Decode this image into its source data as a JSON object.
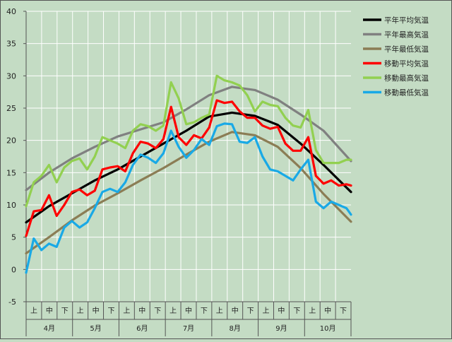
{
  "chart_data": {
    "type": "line",
    "ylim": [
      -5,
      40
    ],
    "yticks": [
      -5,
      0,
      5,
      10,
      15,
      20,
      25,
      30,
      35,
      40
    ],
    "x_months": [
      "4月",
      "5月",
      "6月",
      "7月",
      "8月",
      "9月",
      "10月"
    ],
    "x_decades": [
      "上",
      "中",
      "下"
    ],
    "x_range": [
      0,
      213
    ],
    "grid": true,
    "legend_position": "right",
    "series": [
      {
        "name": "平年平均気温",
        "color": "#000000",
        "x": [
          0,
          15,
          30,
          45,
          60,
          75,
          90,
          105,
          120,
          135,
          150,
          165,
          180,
          195,
          213
        ],
        "y": [
          7.3,
          9.8,
          11.8,
          13.8,
          15.5,
          17.5,
          19.5,
          21.5,
          23.7,
          24.3,
          23.8,
          22.4,
          19.5,
          16.2,
          12.0
        ]
      },
      {
        "name": "平年最高気温",
        "color": "#808080",
        "x": [
          0,
          15,
          30,
          45,
          60,
          75,
          90,
          105,
          120,
          135,
          150,
          165,
          180,
          195,
          213
        ],
        "y": [
          12.3,
          15.0,
          17.2,
          19.0,
          20.6,
          21.7,
          22.8,
          24.8,
          27.0,
          28.3,
          27.8,
          26.3,
          24.0,
          21.5,
          16.8
        ]
      },
      {
        "name": "平年最低気温",
        "color": "#8b7d55",
        "x": [
          0,
          15,
          30,
          45,
          60,
          75,
          90,
          105,
          120,
          135,
          150,
          165,
          180,
          195,
          213
        ],
        "y": [
          2.5,
          5.0,
          7.6,
          9.9,
          11.8,
          13.8,
          15.7,
          17.8,
          19.8,
          21.3,
          20.8,
          19.0,
          15.7,
          11.7,
          7.4
        ]
      },
      {
        "name": "移動平均気温",
        "color": "#ff0000",
        "x": [
          0,
          5,
          10,
          15,
          20,
          25,
          30,
          35,
          40,
          45,
          50,
          55,
          60,
          65,
          70,
          75,
          80,
          85,
          90,
          95,
          100,
          105,
          110,
          115,
          120,
          125,
          130,
          135,
          140,
          145,
          150,
          155,
          160,
          165,
          170,
          175,
          180,
          185,
          190,
          195,
          200,
          205,
          210,
          213
        ],
        "y": [
          5.2,
          9.0,
          9.2,
          11.5,
          8.3,
          10.0,
          12.0,
          12.4,
          11.5,
          12.2,
          15.5,
          15.8,
          16.0,
          15.2,
          18.0,
          19.8,
          19.5,
          18.8,
          20.2,
          25.2,
          20.5,
          19.3,
          20.8,
          20.3,
          22.0,
          26.2,
          25.8,
          26.0,
          24.5,
          23.5,
          23.5,
          22.3,
          21.8,
          22.1,
          19.5,
          18.4,
          18.4,
          20.5,
          14.5,
          13.3,
          13.8,
          13.0,
          13.2,
          13.0
        ]
      },
      {
        "name": "移動最高気温",
        "color": "#92d050",
        "x": [
          0,
          5,
          10,
          15,
          20,
          25,
          30,
          35,
          40,
          45,
          50,
          55,
          60,
          65,
          70,
          75,
          80,
          85,
          90,
          95,
          100,
          105,
          110,
          115,
          120,
          125,
          130,
          135,
          140,
          145,
          150,
          155,
          160,
          165,
          170,
          175,
          180,
          185,
          190,
          195,
          200,
          205,
          210,
          213
        ],
        "y": [
          9.8,
          13.5,
          14.5,
          16.2,
          13.5,
          15.8,
          16.8,
          17.2,
          15.5,
          17.5,
          20.5,
          20.0,
          19.5,
          18.8,
          21.5,
          22.5,
          22.2,
          21.5,
          22.3,
          29.0,
          26.5,
          22.5,
          22.8,
          23.5,
          24.0,
          30.0,
          29.3,
          29.0,
          28.5,
          27.0,
          24.5,
          26.0,
          25.5,
          25.3,
          23.5,
          22.3,
          22.0,
          24.7,
          18.5,
          16.5,
          16.5,
          16.5,
          17.0,
          17.0
        ]
      },
      {
        "name": "移動最低気温",
        "color": "#19a9e6",
        "x": [
          0,
          5,
          10,
          15,
          20,
          25,
          30,
          35,
          40,
          45,
          50,
          55,
          60,
          65,
          70,
          75,
          80,
          85,
          90,
          95,
          100,
          105,
          110,
          115,
          120,
          125,
          130,
          135,
          140,
          145,
          150,
          155,
          160,
          165,
          170,
          175,
          180,
          185,
          190,
          195,
          200,
          205,
          210,
          213
        ],
        "y": [
          -0.5,
          4.8,
          3.0,
          4.0,
          3.5,
          6.5,
          7.5,
          6.5,
          7.3,
          9.5,
          12.0,
          12.5,
          12.0,
          13.5,
          16.2,
          17.8,
          17.3,
          16.5,
          18.0,
          21.5,
          19.0,
          17.3,
          18.5,
          20.2,
          19.3,
          22.2,
          22.6,
          22.5,
          19.8,
          19.6,
          20.5,
          17.5,
          15.5,
          15.2,
          14.5,
          13.8,
          15.5,
          17.0,
          10.5,
          9.5,
          10.5,
          10.0,
          9.5,
          8.5
        ]
      }
    ]
  }
}
